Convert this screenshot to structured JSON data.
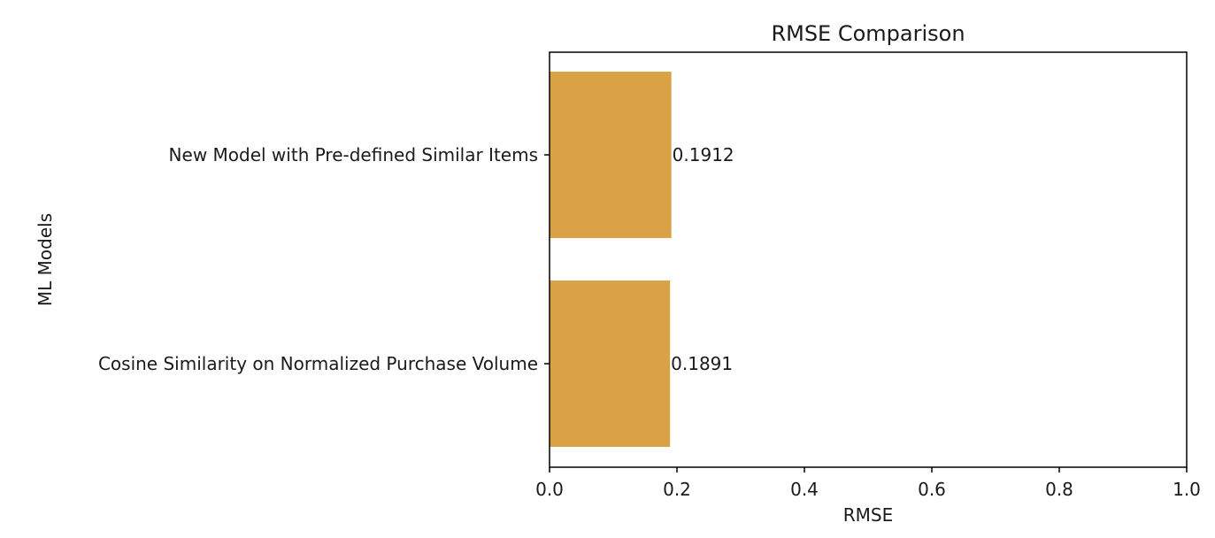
{
  "chart_data": {
    "type": "bar",
    "orientation": "horizontal",
    "title": "RMSE Comparison",
    "xlabel": "RMSE",
    "ylabel": "ML Models",
    "categories": [
      "New Model with Pre-defined Similar Items",
      "Cosine Similarity on Normalized Purchase Volume"
    ],
    "values": [
      0.1912,
      0.1891
    ],
    "value_labels": [
      "0.1912",
      "0.1891"
    ],
    "xlim": [
      0,
      1
    ],
    "xticks": [
      0.0,
      0.2,
      0.4,
      0.6,
      0.8,
      1.0
    ],
    "xtick_labels": [
      "0.0",
      "0.2",
      "0.4",
      "0.6",
      "0.8",
      "1.0"
    ],
    "bar_color": "#dba245",
    "grid": false,
    "legend": "none"
  }
}
